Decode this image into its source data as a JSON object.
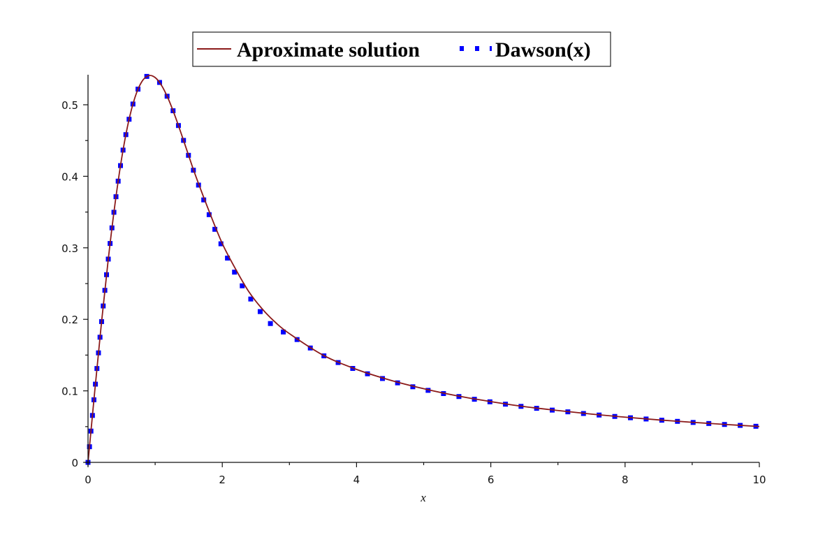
{
  "chart_data": {
    "type": "line",
    "title": "",
    "xlabel": "x",
    "ylabel": "",
    "xlim": [
      0,
      10
    ],
    "ylim": [
      0,
      0.55
    ],
    "grid": false,
    "legend_position": "top-center",
    "xticks": [
      0,
      2,
      4,
      6,
      8,
      10
    ],
    "xtick_labels": [
      "0",
      "2",
      "4",
      "6",
      "8",
      "10"
    ],
    "yticks": [
      0,
      0.1,
      0.2,
      0.3,
      0.4,
      0.5
    ],
    "ytick_labels": [
      "0",
      "0.1",
      "0.2",
      "0.3",
      "0.4",
      "0.5"
    ],
    "series": [
      {
        "name": "Aproximate solution",
        "style": "solid",
        "color": "#8b1a1a",
        "x": [
          0,
          0.1,
          0.2,
          0.3,
          0.4,
          0.5,
          0.6,
          0.7,
          0.8,
          0.9,
          1.0,
          1.1,
          1.2,
          1.3,
          1.4,
          1.5,
          1.6,
          1.8,
          2.0,
          2.2,
          2.4,
          2.6,
          2.8,
          3.0,
          3.5,
          4.0,
          4.5,
          5.0,
          5.5,
          6.0,
          6.5,
          7.0,
          7.5,
          8.0,
          8.5,
          9.0,
          9.5,
          10.0
        ],
        "y": [
          0,
          0.0993,
          0.1948,
          0.2826,
          0.3599,
          0.4244,
          0.4748,
          0.5105,
          0.5321,
          0.5407,
          0.5381,
          0.5263,
          0.5073,
          0.4833,
          0.4565,
          0.4288,
          0.4015,
          0.352,
          0.306,
          0.27,
          0.238,
          0.214,
          0.195,
          0.18,
          0.15,
          0.13,
          0.115,
          0.103,
          0.093,
          0.085,
          0.078,
          0.0725,
          0.0675,
          0.0632,
          0.0594,
          0.056,
          0.053,
          0.0502
        ]
      },
      {
        "name": "Dawson(x)",
        "style": "dotted",
        "color": "#0000ff",
        "x": [
          0,
          0.1,
          0.2,
          0.3,
          0.4,
          0.5,
          0.6,
          0.7,
          0.8,
          0.9,
          1.0,
          1.1,
          1.2,
          1.3,
          1.4,
          1.5,
          1.6,
          1.8,
          2.0,
          2.2,
          2.4,
          2.6,
          2.8,
          3.0,
          3.5,
          4.0,
          4.5,
          5.0,
          5.5,
          6.0,
          6.5,
          7.0,
          7.5,
          8.0,
          8.5,
          9.0,
          9.5,
          10.0
        ],
        "y": [
          0,
          0.0993,
          0.1948,
          0.2826,
          0.3599,
          0.4244,
          0.4748,
          0.5105,
          0.5321,
          0.5407,
          0.5381,
          0.5263,
          0.5073,
          0.4833,
          0.4565,
          0.4283,
          0.4002,
          0.3474,
          0.3013,
          0.2629,
          0.2317,
          0.2068,
          0.1869,
          0.1783,
          0.1496,
          0.1293,
          0.1141,
          0.1021,
          0.0925,
          0.0845,
          0.0777,
          0.0722,
          0.0672,
          0.063,
          0.0593,
          0.0559,
          0.0529,
          0.0502
        ]
      }
    ]
  },
  "legend": {
    "items": [
      {
        "label": "Aproximate solution",
        "color": "#8b1a1a",
        "style": "solid"
      },
      {
        "label": "Dawson(x)",
        "color": "#0000ff",
        "style": "dotted"
      }
    ]
  },
  "axes": {
    "xlabel": "x"
  }
}
